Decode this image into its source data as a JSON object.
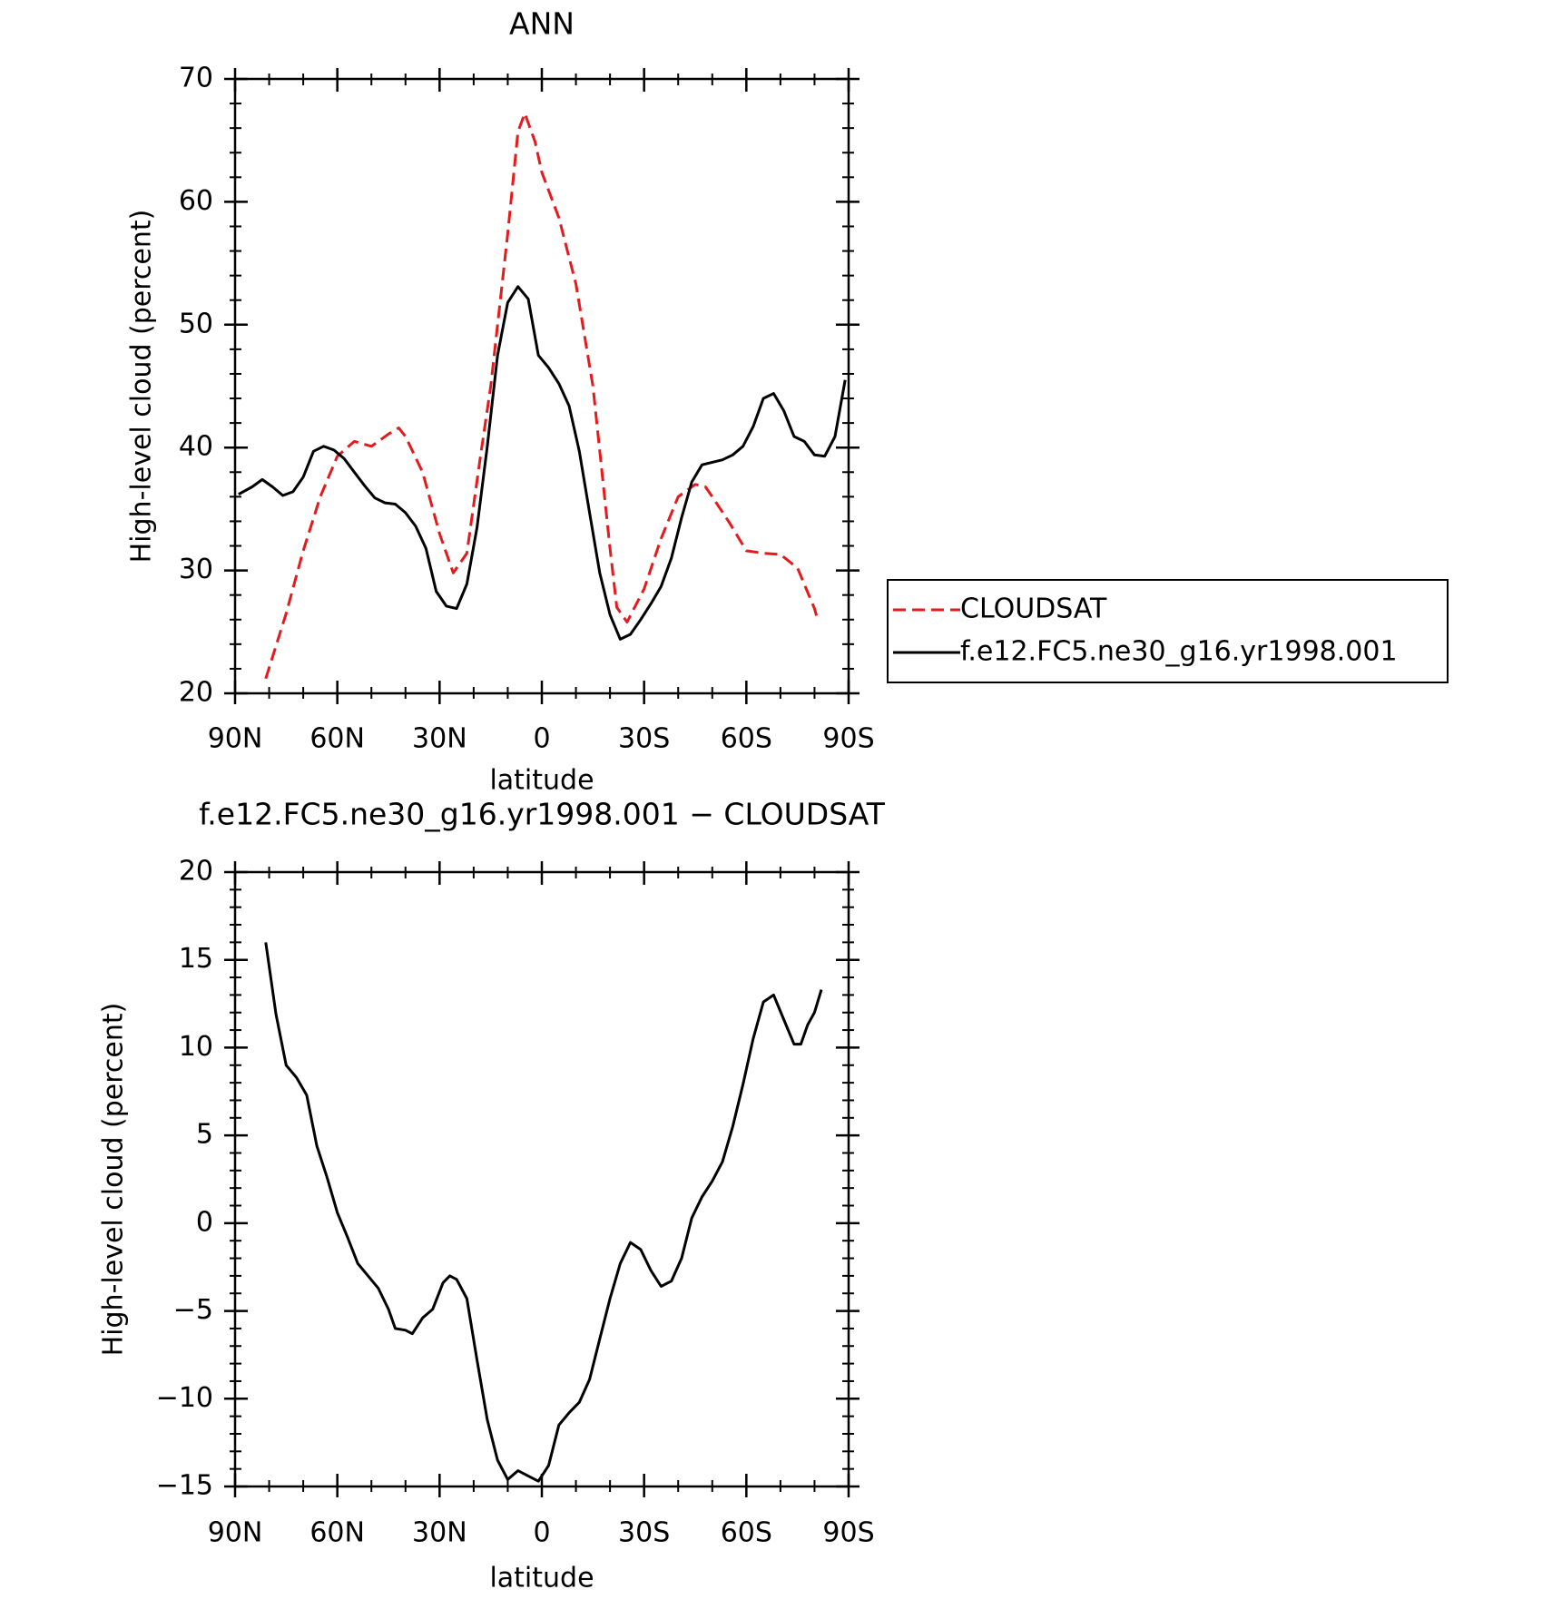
{
  "chart_data": [
    {
      "type": "line",
      "title": "ANN",
      "x_label": "latitude",
      "y_label": "High-level cloud (percent)",
      "xlim": [
        90,
        -90
      ],
      "xticks": [
        {
          "value": 90,
          "label": "90N"
        },
        {
          "value": 60,
          "label": "60N"
        },
        {
          "value": 30,
          "label": "30N"
        },
        0,
        {
          "value": -30,
          "label": "30S"
        },
        {
          "value": -60,
          "label": "60S"
        },
        {
          "value": -90,
          "label": "90S"
        }
      ],
      "ylim": [
        20,
        70
      ],
      "yticks": [
        20,
        30,
        40,
        50,
        60,
        70
      ],
      "legend": "right",
      "series": [
        {
          "name": "CLOUDSAT",
          "color": "#e41a1c",
          "line_style": "dashed",
          "x": [
            81,
            75,
            70,
            65,
            60,
            55,
            50,
            45,
            42,
            40,
            35,
            30,
            26,
            22,
            18,
            15,
            10,
            7,
            5,
            2,
            0,
            -5,
            -10,
            -15,
            -20,
            -22,
            -25,
            -30,
            -35,
            -40,
            -45,
            -48,
            -50,
            -55,
            -60,
            -65,
            -70,
            -75,
            -80,
            -81
          ],
          "values": [
            21.2,
            26.5,
            31.6,
            36,
            39.3,
            40.5,
            40.1,
            41.1,
            41.6,
            40.9,
            38,
            33,
            29.8,
            31.4,
            39.3,
            45,
            57.4,
            65.7,
            67.2,
            64.9,
            62.4,
            58.7,
            53.3,
            45,
            31.8,
            27,
            25.8,
            28.5,
            32.6,
            36,
            37,
            36.8,
            36,
            33.9,
            31.6,
            31.4,
            31.3,
            30.2,
            26.9,
            25.9
          ]
        },
        {
          "name": "f.e12.FC5.ne30_g16.yr1998.001",
          "color": "#000000",
          "line_style": "solid",
          "x": [
            89,
            85,
            82,
            79,
            76,
            73,
            70,
            67,
            64,
            61,
            58,
            55,
            52,
            49,
            46,
            43,
            40,
            37,
            34,
            31,
            28,
            25,
            22,
            19,
            16,
            13,
            10,
            7,
            4,
            1,
            -2,
            -5,
            -8,
            -11,
            -14,
            -17,
            -20,
            -23,
            -26,
            -29,
            -32,
            -35,
            -38,
            -41,
            -44,
            -47,
            -50,
            -53,
            -56,
            -59,
            -62,
            -65,
            -68,
            -71,
            -74,
            -77,
            -80,
            -83,
            -86,
            -89
          ],
          "values": [
            36.2,
            36.8,
            37.4,
            36.8,
            36.1,
            36.4,
            37.6,
            39.7,
            40.1,
            39.8,
            39.1,
            38,
            36.9,
            35.9,
            35.5,
            35.4,
            34.7,
            33.6,
            31.8,
            28.3,
            27.1,
            26.9,
            28.9,
            33.5,
            40.1,
            47.5,
            51.8,
            53.1,
            52.1,
            47.5,
            46.5,
            45.2,
            43.4,
            39.7,
            34.7,
            29.8,
            26.4,
            24.4,
            24.8,
            26,
            27.3,
            28.7,
            31,
            34.3,
            37.2,
            38.6,
            38.8,
            39,
            39.4,
            40.1,
            41.7,
            44,
            44.4,
            43,
            40.9,
            40.5,
            39.4,
            39.3,
            40.9,
            45.5
          ]
        }
      ]
    },
    {
      "type": "line",
      "title": "f.e12.FC5.ne30_g16.yr1998.001 − CLOUDSAT",
      "x_label": "latitude",
      "y_label": "High-level cloud (percent)",
      "xlim": [
        90,
        -90
      ],
      "xticks": [
        {
          "value": 90,
          "label": "90N"
        },
        {
          "value": 60,
          "label": "60N"
        },
        {
          "value": 30,
          "label": "30N"
        },
        0,
        {
          "value": -30,
          "label": "30S"
        },
        {
          "value": -60,
          "label": "60S"
        },
        {
          "value": -90,
          "label": "90S"
        }
      ],
      "ylim": [
        -15,
        20
      ],
      "yticks": [
        {
          "value": -15,
          "label": "−15"
        },
        {
          "value": -10,
          "label": "−10"
        },
        {
          "value": -5,
          "label": "−5"
        },
        0,
        5,
        10,
        15,
        20
      ],
      "color": "#000000",
      "x": [
        81,
        78,
        75,
        72,
        69,
        66,
        63,
        60,
        57,
        54,
        51,
        48,
        45,
        43,
        40,
        38,
        35,
        32,
        29,
        27,
        25,
        22,
        19,
        16,
        13,
        10,
        7,
        4,
        1,
        -2,
        -5,
        -8,
        -11,
        -14,
        -17,
        -20,
        -23,
        -26,
        -29,
        -32,
        -35,
        -38,
        -41,
        -44,
        -47,
        -50,
        -53,
        -56,
        -59,
        -62,
        -65,
        -68,
        -71,
        -74,
        -76,
        -78,
        -80,
        -82
      ],
      "values": [
        16,
        11.9,
        9,
        8.3,
        7.3,
        4.4,
        2.6,
        0.6,
        -0.8,
        -2.3,
        -3,
        -3.7,
        -4.9,
        -6,
        -6.1,
        -6.3,
        -5.4,
        -4.9,
        -3.4,
        -3,
        -3.2,
        -4.3,
        -7.8,
        -11.2,
        -13.5,
        -14.6,
        -14.1,
        -14.4,
        -14.7,
        -13.8,
        -11.5,
        -10.8,
        -10.2,
        -8.9,
        -6.6,
        -4.3,
        -2.3,
        -1.1,
        -1.5,
        -2.7,
        -3.6,
        -3.3,
        -2,
        0.3,
        1.5,
        2.4,
        3.5,
        5.5,
        7.9,
        10.5,
        12.6,
        13,
        11.6,
        10.2,
        10.2,
        11.3,
        12,
        13.3
      ]
    }
  ]
}
